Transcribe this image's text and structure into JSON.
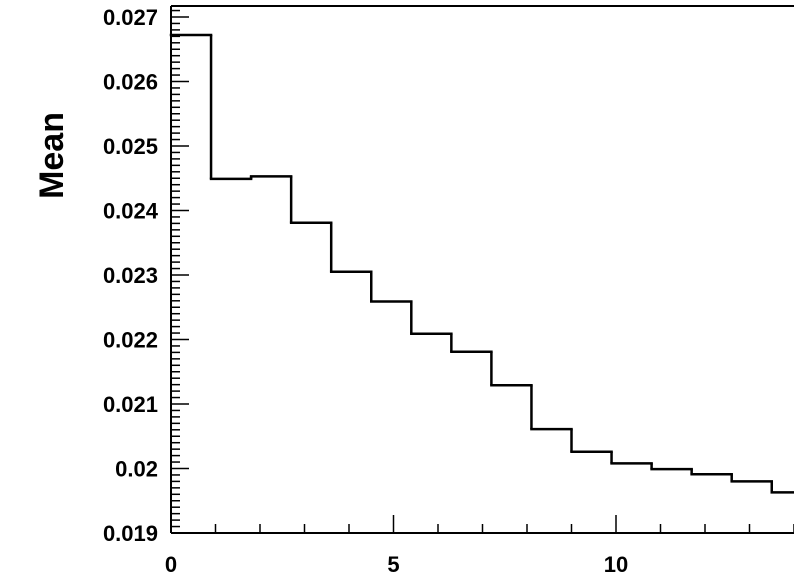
{
  "chart_data": {
    "type": "line",
    "style": "step histogram",
    "title": "",
    "xlabel": "",
    "ylabel": "Mean",
    "xlim": [
      0,
      14
    ],
    "ylim": [
      0.019,
      0.0274
    ],
    "grid": false,
    "legend": "none",
    "color": "#000000",
    "x_ticks": [
      {
        "value": 0,
        "label": "0"
      },
      {
        "value": 5,
        "label": "5"
      },
      {
        "value": 10,
        "label": "10"
      }
    ],
    "y_ticks": [
      {
        "value": 0.019,
        "label": "0.019"
      },
      {
        "value": 0.02,
        "label": "0.02"
      },
      {
        "value": 0.021,
        "label": "0.021"
      },
      {
        "value": 0.022,
        "label": "0.022"
      },
      {
        "value": 0.023,
        "label": "0.023"
      },
      {
        "value": 0.024,
        "label": "0.024"
      },
      {
        "value": 0.025,
        "label": "0.025"
      },
      {
        "value": 0.026,
        "label": "0.026"
      },
      {
        "value": 0.027,
        "label": "0.027"
      }
    ],
    "bin_edges": [
      0,
      0.9,
      1.8,
      2.7,
      3.6,
      4.5,
      5.4,
      6.3,
      7.2,
      8.1,
      9.0,
      9.9,
      10.8,
      11.7,
      12.6,
      13.5,
      14.0
    ],
    "values": [
      0.02672,
      0.02449,
      0.02453,
      0.02381,
      0.02305,
      0.02259,
      0.02209,
      0.02181,
      0.02129,
      0.02061,
      0.02026,
      0.02008,
      0.01999,
      0.01991,
      0.0198,
      0.01963
    ]
  }
}
